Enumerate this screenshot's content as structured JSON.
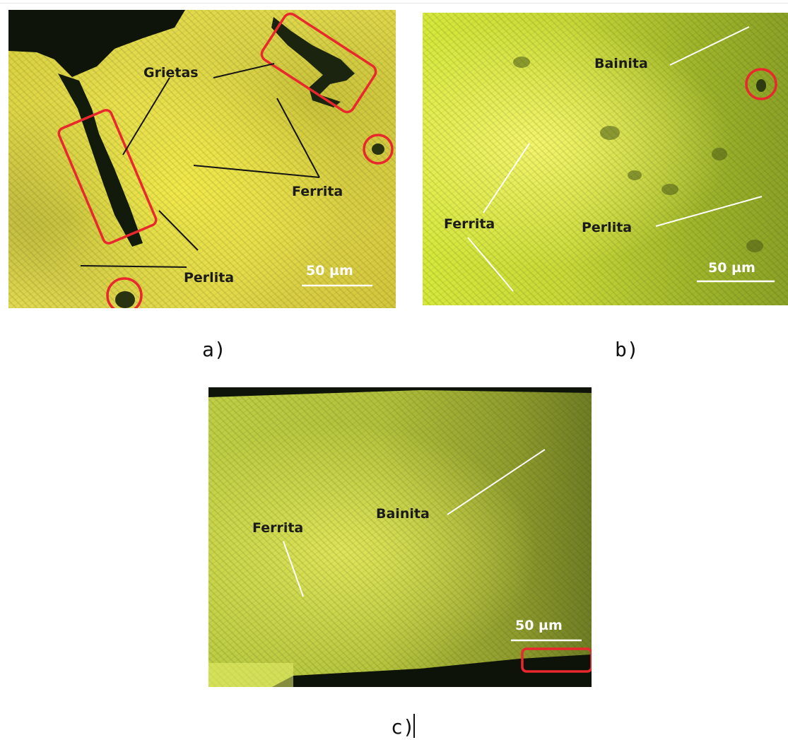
{
  "figure": {
    "panel_a": {
      "labels": {
        "grietas": "Grietas",
        "ferrita": "Ferrita",
        "perlita": "Perlita"
      },
      "scale_bar": "50 µm",
      "caption": "a)"
    },
    "panel_b": {
      "labels": {
        "bainita": "Bainita",
        "ferrita": "Ferrita",
        "perlita": "Perlita"
      },
      "scale_bar": "50 µm",
      "caption": "b)"
    },
    "panel_c": {
      "labels": {
        "ferrita": "Ferrita",
        "bainita": "Bainita"
      },
      "scale_bar": "50 µm",
      "caption": "c)"
    }
  },
  "colors": {
    "highlight": "#e8282c",
    "crack": "#0f140a",
    "leader_dark": "#151515",
    "leader_light": "#ffffff"
  }
}
